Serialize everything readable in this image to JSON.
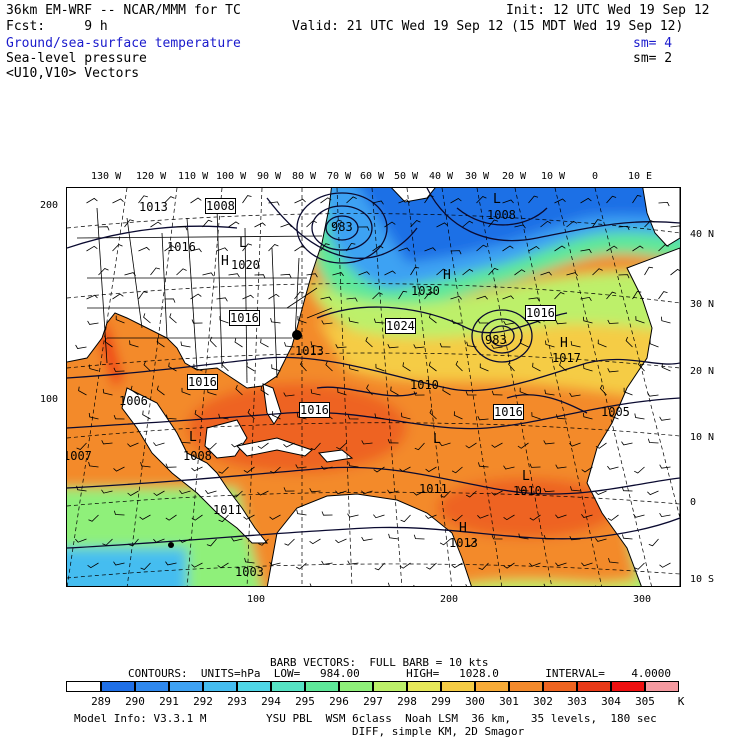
{
  "header": {
    "model": "36km EM-WRF -- NCAR/MMM for TC",
    "init": "Init: 12 UTC Wed 19 Sep 12",
    "fcst": "Fcst:     9 h",
    "valid": "Valid: 21 UTC Wed 19 Sep 12 (15 MDT Wed 19 Sep 12)",
    "field1": "Ground/sea-surface temperature",
    "field1_sm": "sm= 4",
    "field2": "Sea-level pressure",
    "field2_sm": "sm= 2",
    "field3": "<U10,V10> Vectors"
  },
  "lon_labels": [
    "130 W",
    "120 W",
    "110 W",
    "100 W",
    "90 W",
    "80 W",
    "70 W",
    "60 W",
    "50 W",
    "40 W",
    "30 W",
    "20 W",
    "10 W",
    "0",
    "10 E"
  ],
  "lat_labels": [
    "40 N",
    "30 N",
    "20 N",
    "10 N",
    "0",
    "10 S"
  ],
  "grid_y_labels": [
    "200",
    "100"
  ],
  "grid_x_labels": [
    "100",
    "200",
    "300"
  ],
  "pressure_labels": {
    "p1013a": "1013",
    "p1008a": "1008",
    "p1016a": "1016",
    "p983a": "983",
    "p1008b": "1008",
    "p1024": "1024",
    "p1016b": "1016",
    "p983b": "983",
    "p1017": "1017",
    "p1016c": "1016",
    "p1013b": "1013",
    "p1016d": "1016",
    "p1006": "1006",
    "p1010a": "1010",
    "p1016e": "1016",
    "p1016f": "1016",
    "p1005": "1005",
    "p1007": "1007",
    "p1008c": "1008",
    "p1011a": "1011",
    "p1010b": "1010",
    "p1011b": "1011",
    "p1013c": "1013",
    "p1003": "1003",
    "p1020": "1020",
    "p1030": "1030"
  },
  "highs_lows": {
    "h1": "H",
    "h2": "H",
    "h3": "H",
    "h4": "H",
    "l1": "L",
    "l2": "L",
    "l3": "L",
    "l4": "L",
    "l5": "L"
  },
  "legend": {
    "barb": "BARB VECTORS:  FULL BARB = 10 kts",
    "contours": "CONTOURS:  UNITS=hPa  LOW=   984.00       HIGH=   1028.0       INTERVAL=    4.0000",
    "unit": "K",
    "ticks": [
      "289",
      "290",
      "291",
      "292",
      "293",
      "294",
      "295",
      "296",
      "297",
      "298",
      "299",
      "300",
      "301",
      "302",
      "303",
      "304",
      "305"
    ],
    "colors": [
      "#ffffff",
      "#1f6fe6",
      "#2f88ee",
      "#3ea2f3",
      "#45bdf0",
      "#4fd6e6",
      "#56e3c4",
      "#5fe89a",
      "#8ff07a",
      "#bdf06a",
      "#e6e85a",
      "#f5cc45",
      "#f7ab38",
      "#f38a2c",
      "#ee6420",
      "#e83a18",
      "#ee1010",
      "#f59aa0"
    ]
  },
  "footer": {
    "info": "Model Info: V3.3.1 M",
    "physics": "YSU PBL  WSM 6class  Noah LSM  36 km,   35 levels,  180 sec",
    "diff": "DIFF, simple KM, 2D Smagor"
  }
}
